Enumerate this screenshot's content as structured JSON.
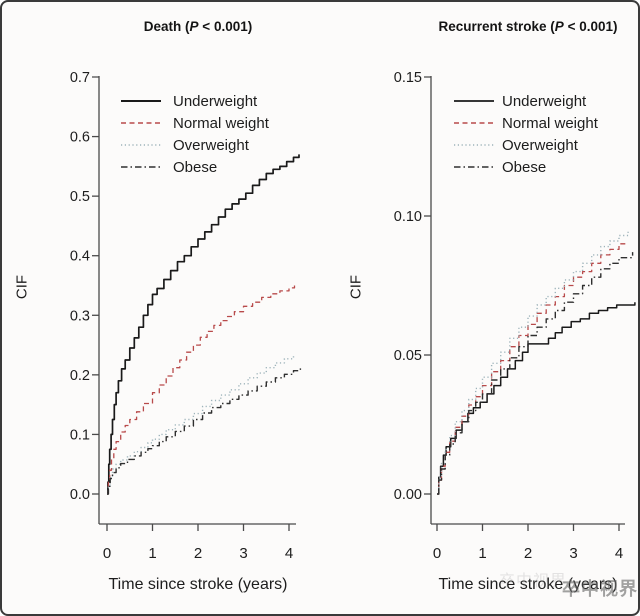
{
  "watermark": "卒中视界",
  "colors": {
    "axis": "#4a4a4a",
    "underweight": "#1a1a1a",
    "normal_weight": "#b84a4a",
    "overweight": "#9db3ba",
    "obese": "#2f2f2f",
    "background": "#fcfbfa",
    "border": "#3a3a3a"
  },
  "chart_data": [
    {
      "type": "line",
      "title": "Death (P < 0.001)",
      "title_prefix": "Death (",
      "title_p": "P",
      "title_suffix": " < 0.001)",
      "xlabel": "Time since stroke (years)",
      "ylabel": "CIF",
      "xlim": [
        0,
        4.3
      ],
      "ylim": [
        0,
        0.7
      ],
      "grid": false,
      "legend_position": "top-left-inside",
      "xticks": {
        "values": [
          0,
          1,
          2,
          3,
          4
        ],
        "labels": [
          "0",
          "1",
          "2",
          "3",
          "4"
        ]
      },
      "yticks": {
        "values": [
          0.0,
          0.1,
          0.2,
          0.3,
          0.4,
          0.5,
          0.6,
          0.7
        ],
        "labels": [
          "0.0",
          "0.1",
          "0.2",
          "0.3",
          "0.4",
          "0.5",
          "0.6",
          "0.7"
        ]
      },
      "series": [
        {
          "name": "Underweight",
          "style": "solid",
          "color": "#1a1a1a",
          "width": 1.7,
          "points": [
            [
              0,
              0
            ],
            [
              0.02,
              0.02
            ],
            [
              0.04,
              0.05
            ],
            [
              0.06,
              0.075
            ],
            [
              0.09,
              0.1
            ],
            [
              0.12,
              0.125
            ],
            [
              0.16,
              0.15
            ],
            [
              0.2,
              0.17
            ],
            [
              0.25,
              0.19
            ],
            [
              0.32,
              0.21
            ],
            [
              0.4,
              0.225
            ],
            [
              0.5,
              0.245
            ],
            [
              0.6,
              0.262
            ],
            [
              0.7,
              0.28
            ],
            [
              0.8,
              0.3
            ],
            [
              0.9,
              0.318
            ],
            [
              1.0,
              0.335
            ],
            [
              1.1,
              0.345
            ],
            [
              1.25,
              0.36
            ],
            [
              1.4,
              0.375
            ],
            [
              1.55,
              0.39
            ],
            [
              1.7,
              0.4
            ],
            [
              1.85,
              0.415
            ],
            [
              2.0,
              0.428
            ],
            [
              2.15,
              0.44
            ],
            [
              2.3,
              0.452
            ],
            [
              2.45,
              0.465
            ],
            [
              2.6,
              0.478
            ],
            [
              2.75,
              0.487
            ],
            [
              2.9,
              0.495
            ],
            [
              3.05,
              0.505
            ],
            [
              3.2,
              0.518
            ],
            [
              3.35,
              0.528
            ],
            [
              3.5,
              0.538
            ],
            [
              3.65,
              0.545
            ],
            [
              3.8,
              0.55
            ],
            [
              3.95,
              0.558
            ],
            [
              4.1,
              0.565
            ],
            [
              4.22,
              0.57
            ]
          ]
        },
        {
          "name": "Normal weight",
          "style": "dashed",
          "color": "#b84a4a",
          "width": 1.3,
          "points": [
            [
              0,
              0
            ],
            [
              0.03,
              0.02
            ],
            [
              0.06,
              0.04
            ],
            [
              0.1,
              0.06
            ],
            [
              0.15,
              0.075
            ],
            [
              0.2,
              0.088
            ],
            [
              0.3,
              0.104
            ],
            [
              0.4,
              0.115
            ],
            [
              0.5,
              0.125
            ],
            [
              0.65,
              0.138
            ],
            [
              0.8,
              0.152
            ],
            [
              1.0,
              0.17
            ],
            [
              1.15,
              0.183
            ],
            [
              1.3,
              0.198
            ],
            [
              1.45,
              0.212
            ],
            [
              1.6,
              0.225
            ],
            [
              1.75,
              0.238
            ],
            [
              1.9,
              0.25
            ],
            [
              2.05,
              0.263
            ],
            [
              2.2,
              0.273
            ],
            [
              2.35,
              0.283
            ],
            [
              2.5,
              0.291
            ],
            [
              2.65,
              0.298
            ],
            [
              2.8,
              0.306
            ],
            [
              3.0,
              0.315
            ],
            [
              3.2,
              0.322
            ],
            [
              3.4,
              0.33
            ],
            [
              3.6,
              0.336
            ],
            [
              3.8,
              0.341
            ],
            [
              4.0,
              0.346
            ],
            [
              4.12,
              0.35
            ]
          ]
        },
        {
          "name": "Overweight",
          "style": "dotted",
          "color": "#9db3ba",
          "width": 1.4,
          "points": [
            [
              0,
              0
            ],
            [
              0.03,
              0.015
            ],
            [
              0.07,
              0.03
            ],
            [
              0.12,
              0.042
            ],
            [
              0.2,
              0.05
            ],
            [
              0.3,
              0.057
            ],
            [
              0.45,
              0.064
            ],
            [
              0.6,
              0.071
            ],
            [
              0.75,
              0.078
            ],
            [
              0.9,
              0.086
            ],
            [
              1.0,
              0.092
            ],
            [
              1.15,
              0.1
            ],
            [
              1.3,
              0.108
            ],
            [
              1.5,
              0.116
            ],
            [
              1.7,
              0.125
            ],
            [
              1.9,
              0.135
            ],
            [
              2.1,
              0.147
            ],
            [
              2.3,
              0.157
            ],
            [
              2.5,
              0.166
            ],
            [
              2.7,
              0.175
            ],
            [
              2.9,
              0.185
            ],
            [
              3.1,
              0.195
            ],
            [
              3.3,
              0.203
            ],
            [
              3.5,
              0.212
            ],
            [
              3.7,
              0.22
            ],
            [
              3.9,
              0.227
            ],
            [
              4.1,
              0.235
            ]
          ]
        },
        {
          "name": "Obese",
          "style": "dashdot",
          "color": "#2f2f2f",
          "width": 1.4,
          "points": [
            [
              0,
              0
            ],
            [
              0.03,
              0.013
            ],
            [
              0.07,
              0.026
            ],
            [
              0.12,
              0.036
            ],
            [
              0.2,
              0.044
            ],
            [
              0.3,
              0.051
            ],
            [
              0.45,
              0.058
            ],
            [
              0.6,
              0.064
            ],
            [
              0.75,
              0.07
            ],
            [
              0.9,
              0.076
            ],
            [
              1.0,
              0.081
            ],
            [
              1.15,
              0.088
            ],
            [
              1.3,
              0.096
            ],
            [
              1.5,
              0.105
            ],
            [
              1.7,
              0.114
            ],
            [
              1.9,
              0.125
            ],
            [
              2.1,
              0.136
            ],
            [
              2.3,
              0.145
            ],
            [
              2.5,
              0.152
            ],
            [
              2.7,
              0.159
            ],
            [
              2.9,
              0.166
            ],
            [
              3.1,
              0.173
            ],
            [
              3.3,
              0.181
            ],
            [
              3.5,
              0.188
            ],
            [
              3.7,
              0.195
            ],
            [
              3.9,
              0.201
            ],
            [
              4.1,
              0.207
            ],
            [
              4.25,
              0.212
            ]
          ]
        }
      ]
    },
    {
      "type": "line",
      "title": "Recurrent stroke (P < 0.001)",
      "title_prefix": "Recurrent stroke (",
      "title_p": "P",
      "title_suffix": " < 0.001)",
      "xlabel": "Time since stroke (years)",
      "ylabel": "CIF",
      "xlim": [
        0,
        4.4
      ],
      "ylim": [
        0,
        0.15
      ],
      "grid": false,
      "legend_position": "top-left-inside",
      "xticks": {
        "values": [
          0,
          1,
          2,
          3,
          4
        ],
        "labels": [
          "0",
          "1",
          "2",
          "3",
          "4"
        ]
      },
      "yticks": {
        "values": [
          0.0,
          0.05,
          0.1,
          0.15
        ],
        "labels": [
          "0.00",
          "0.05",
          "0.10",
          "0.15"
        ]
      },
      "series": [
        {
          "name": "Underweight",
          "style": "solid",
          "color": "#1a1a1a",
          "width": 1.5,
          "points": [
            [
              0,
              0
            ],
            [
              0.04,
              0.006
            ],
            [
              0.08,
              0.01
            ],
            [
              0.14,
              0.014
            ],
            [
              0.2,
              0.017
            ],
            [
              0.3,
              0.02
            ],
            [
              0.42,
              0.023
            ],
            [
              0.55,
              0.026
            ],
            [
              0.68,
              0.029
            ],
            [
              0.8,
              0.031
            ],
            [
              0.95,
              0.033
            ],
            [
              1.1,
              0.036
            ],
            [
              1.25,
              0.039
            ],
            [
              1.4,
              0.042
            ],
            [
              1.55,
              0.045
            ],
            [
              1.72,
              0.048
            ],
            [
              1.88,
              0.051
            ],
            [
              2.0,
              0.054
            ],
            [
              2.45,
              0.056
            ],
            [
              2.6,
              0.058
            ],
            [
              2.75,
              0.06
            ],
            [
              2.95,
              0.062
            ],
            [
              3.15,
              0.063
            ],
            [
              3.35,
              0.065
            ],
            [
              3.55,
              0.066
            ],
            [
              3.75,
              0.067
            ],
            [
              3.95,
              0.068
            ],
            [
              4.35,
              0.069
            ]
          ]
        },
        {
          "name": "Normal weight",
          "style": "dashed",
          "color": "#b84a4a",
          "width": 1.3,
          "points": [
            [
              0,
              0
            ],
            [
              0.04,
              0.005
            ],
            [
              0.1,
              0.01
            ],
            [
              0.18,
              0.015
            ],
            [
              0.28,
              0.019
            ],
            [
              0.4,
              0.024
            ],
            [
              0.55,
              0.028
            ],
            [
              0.7,
              0.032
            ],
            [
              0.85,
              0.035
            ],
            [
              1.0,
              0.039
            ],
            [
              1.2,
              0.044
            ],
            [
              1.4,
              0.048
            ],
            [
              1.6,
              0.053
            ],
            [
              1.8,
              0.057
            ],
            [
              2.0,
              0.061
            ],
            [
              2.2,
              0.065
            ],
            [
              2.4,
              0.068
            ],
            [
              2.6,
              0.071
            ],
            [
              2.8,
              0.075
            ],
            [
              3.0,
              0.078
            ],
            [
              3.2,
              0.08
            ],
            [
              3.4,
              0.083
            ],
            [
              3.6,
              0.086
            ],
            [
              3.8,
              0.088
            ],
            [
              4.0,
              0.09
            ],
            [
              4.15,
              0.091
            ]
          ]
        },
        {
          "name": "Overweight",
          "style": "dotted",
          "color": "#9db3ba",
          "width": 1.4,
          "points": [
            [
              0,
              0
            ],
            [
              0.04,
              0.006
            ],
            [
              0.1,
              0.011
            ],
            [
              0.18,
              0.016
            ],
            [
              0.28,
              0.021
            ],
            [
              0.4,
              0.026
            ],
            [
              0.55,
              0.03
            ],
            [
              0.7,
              0.034
            ],
            [
              0.85,
              0.038
            ],
            [
              1.0,
              0.042
            ],
            [
              1.2,
              0.047
            ],
            [
              1.4,
              0.051
            ],
            [
              1.6,
              0.056
            ],
            [
              1.8,
              0.06
            ],
            [
              2.0,
              0.064
            ],
            [
              2.2,
              0.068
            ],
            [
              2.4,
              0.071
            ],
            [
              2.6,
              0.074
            ],
            [
              2.8,
              0.077
            ],
            [
              3.0,
              0.08
            ],
            [
              3.2,
              0.083
            ],
            [
              3.4,
              0.086
            ],
            [
              3.6,
              0.089
            ],
            [
              3.8,
              0.091
            ],
            [
              4.0,
              0.093
            ],
            [
              4.2,
              0.095
            ]
          ]
        },
        {
          "name": "Obese",
          "style": "dashdot",
          "color": "#2f2f2f",
          "width": 1.4,
          "points": [
            [
              0,
              0
            ],
            [
              0.04,
              0.005
            ],
            [
              0.1,
              0.009
            ],
            [
              0.18,
              0.014
            ],
            [
              0.28,
              0.018
            ],
            [
              0.4,
              0.022
            ],
            [
              0.55,
              0.026
            ],
            [
              0.7,
              0.03
            ],
            [
              0.85,
              0.033
            ],
            [
              1.0,
              0.036
            ],
            [
              1.2,
              0.041
            ],
            [
              1.4,
              0.045
            ],
            [
              1.6,
              0.049
            ],
            [
              1.8,
              0.053
            ],
            [
              2.0,
              0.057
            ],
            [
              2.2,
              0.06
            ],
            [
              2.4,
              0.063
            ],
            [
              2.6,
              0.066
            ],
            [
              2.8,
              0.069
            ],
            [
              3.0,
              0.072
            ],
            [
              3.2,
              0.075
            ],
            [
              3.4,
              0.078
            ],
            [
              3.6,
              0.081
            ],
            [
              3.8,
              0.083
            ],
            [
              4.0,
              0.085
            ],
            [
              4.3,
              0.087
            ]
          ]
        }
      ]
    }
  ]
}
